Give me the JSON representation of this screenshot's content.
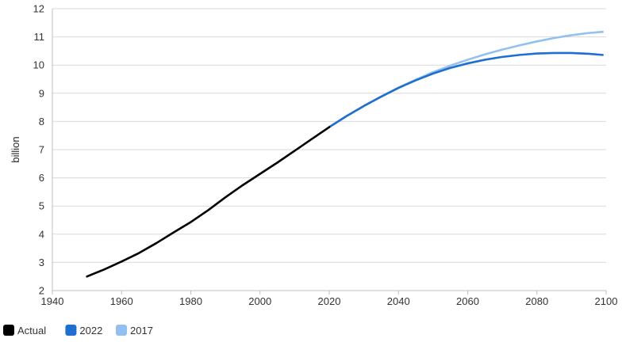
{
  "chart_data": {
    "type": "line",
    "title": "",
    "xlabel": "",
    "ylabel": "billion",
    "xlim": [
      1940,
      2100
    ],
    "ylim": [
      2,
      12
    ],
    "x_ticks": [
      1940,
      1960,
      1980,
      2000,
      2020,
      2040,
      2060,
      2080,
      2100
    ],
    "y_ticks": [
      2,
      3,
      4,
      5,
      6,
      7,
      8,
      9,
      10,
      11,
      12
    ],
    "grid": "horizontal",
    "legend_position": "bottom-left",
    "series": [
      {
        "name": "Actual",
        "color": "#000000",
        "x": [
          1950,
          1955,
          1960,
          1965,
          1970,
          1975,
          1980,
          1985,
          1990,
          1995,
          2000,
          2005,
          2010,
          2015,
          2020
        ],
        "values": [
          2.5,
          2.75,
          3.03,
          3.33,
          3.68,
          4.06,
          4.43,
          4.85,
          5.31,
          5.74,
          6.14,
          6.54,
          6.96,
          7.38,
          7.8
        ]
      },
      {
        "name": "2022",
        "color": "#1f6fd1",
        "x": [
          2020,
          2025,
          2030,
          2035,
          2040,
          2045,
          2050,
          2055,
          2060,
          2065,
          2070,
          2075,
          2080,
          2085,
          2090,
          2095,
          2099
        ],
        "values": [
          7.8,
          8.19,
          8.55,
          8.88,
          9.19,
          9.46,
          9.7,
          9.9,
          10.06,
          10.19,
          10.29,
          10.36,
          10.41,
          10.43,
          10.43,
          10.4,
          10.36
        ]
      },
      {
        "name": "2017",
        "color": "#92c1f0",
        "x": [
          2020,
          2025,
          2030,
          2035,
          2040,
          2045,
          2050,
          2055,
          2060,
          2065,
          2070,
          2075,
          2080,
          2085,
          2090,
          2095,
          2099
        ],
        "values": [
          7.8,
          8.19,
          8.55,
          8.88,
          9.2,
          9.48,
          9.75,
          9.98,
          10.19,
          10.38,
          10.55,
          10.7,
          10.84,
          10.96,
          11.06,
          11.14,
          11.18
        ]
      }
    ]
  }
}
